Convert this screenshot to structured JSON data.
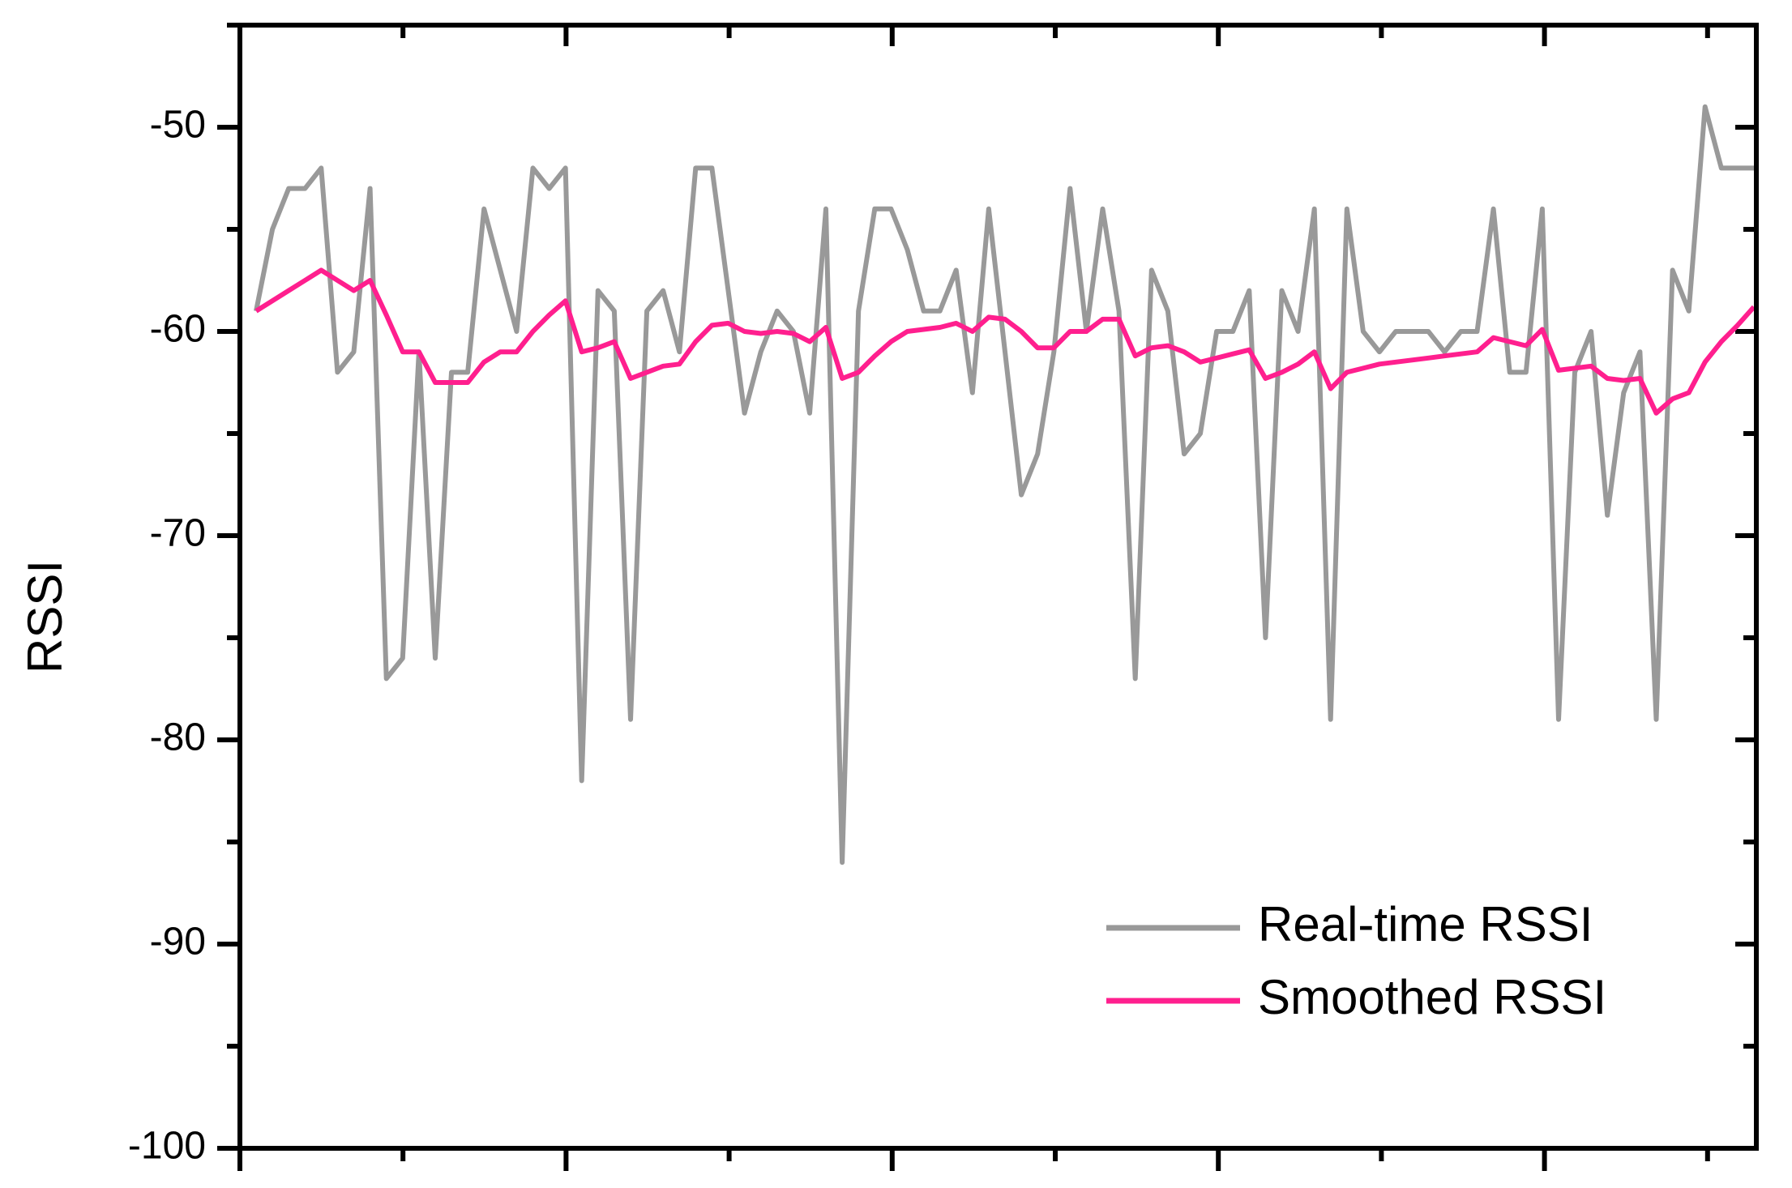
{
  "chart_data": {
    "type": "line",
    "ylabel": "RSSI",
    "ylim": [
      -100,
      -45
    ],
    "yticks": [
      -100,
      -90,
      -80,
      -70,
      -60,
      -50
    ],
    "legend": "lower right",
    "series": [
      {
        "name": "Real-time RSSI",
        "color": "#999999",
        "values": [
          -59,
          -55,
          -53,
          -53,
          -52,
          -62,
          -61,
          -53,
          -77,
          -76,
          -61,
          -76,
          -62,
          -62,
          -54,
          -57,
          -60,
          -52,
          -53,
          -52,
          -82,
          -58,
          -59,
          -79,
          -59,
          -58,
          -61,
          -52,
          -52,
          -58,
          -64,
          -61,
          -59,
          -60,
          -64,
          -54,
          -86,
          -59,
          -54,
          -54,
          -56,
          -59,
          -59,
          -57,
          -63,
          -54,
          -61,
          -68,
          -66,
          -61,
          -53,
          -60,
          -54,
          -59,
          -77,
          -57,
          -59,
          -66,
          -65,
          -60,
          -60,
          -58,
          -75,
          -58,
          -60,
          -54,
          -79,
          -54,
          -60,
          -61,
          -60,
          -60,
          -60,
          -61,
          -60,
          -60,
          -54,
          -62,
          -62,
          -54,
          -79,
          -62,
          -60,
          -69,
          -63,
          -61,
          -79,
          -57,
          -59,
          -49,
          -52,
          -52,
          -52
        ]
      },
      {
        "name": "Smoothed RSSI",
        "color": "#ff1f8e",
        "values": [
          -59,
          -58.5,
          -58,
          -57.5,
          -57,
          -57.5,
          -58,
          -57.5,
          -59.2,
          -61,
          -61,
          -62.5,
          -62.5,
          -62.5,
          -61.5,
          -61,
          -61,
          -60,
          -59.2,
          -58.5,
          -61,
          -60.8,
          -60.5,
          -62.3,
          -62,
          -61.7,
          -61.6,
          -60.5,
          -59.7,
          -59.6,
          -60,
          -60.1,
          -60,
          -60.1,
          -60.5,
          -59.8,
          -62.3,
          -62,
          -61.2,
          -60.5,
          -60,
          -59.9,
          -59.8,
          -59.6,
          -60,
          -59.3,
          -59.4,
          -60,
          -60.8,
          -60.8,
          -60,
          -60,
          -59.4,
          -59.4,
          -61.2,
          -60.8,
          -60.7,
          -61,
          -61.5,
          -61.3,
          -61.1,
          -60.9,
          -62.3,
          -62,
          -61.6,
          -61,
          -62.8,
          -62,
          -61.8,
          -61.6,
          -61.5,
          -61.4,
          -61.3,
          -61.2,
          -61.1,
          -61,
          -60.3,
          -60.5,
          -60.7,
          -59.9,
          -61.9,
          -61.8,
          -61.7,
          -62.3,
          -62.4,
          -62.3,
          -64,
          -63.3,
          -63,
          -61.5,
          -60.5,
          -59.7,
          -58.8
        ]
      }
    ]
  }
}
